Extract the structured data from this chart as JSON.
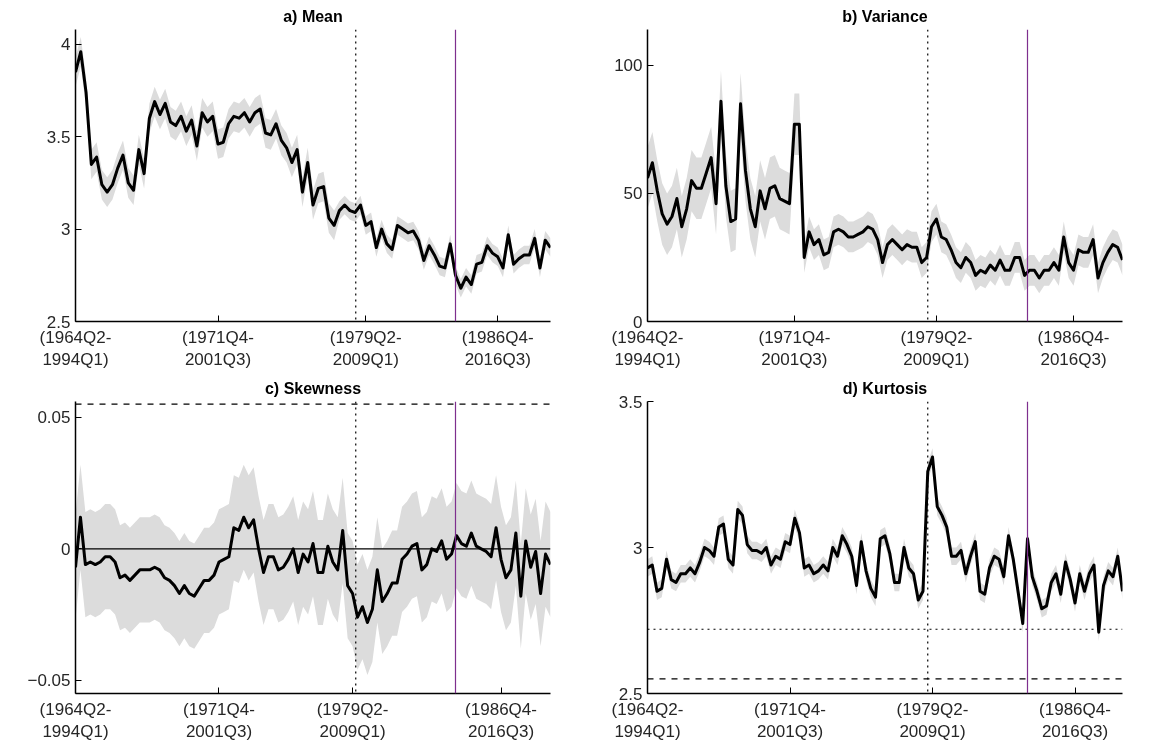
{
  "chart_data": [
    {
      "type": "line",
      "title": "a) Mean",
      "ylim": [
        2.5,
        4.08
      ],
      "categories": [
        "(1964Q2-\n1994Q1)",
        null,
        null,
        null,
        null,
        null,
        null,
        null,
        null,
        null,
        null,
        null,
        null,
        null,
        null,
        null,
        null,
        null,
        null,
        null,
        null,
        null,
        null,
        null,
        null,
        null,
        null,
        "(1971Q4-\n2001Q3)",
        null,
        null,
        null,
        null,
        null,
        null,
        null,
        null,
        null,
        null,
        null,
        null,
        null,
        null,
        null,
        null,
        null,
        null,
        null,
        null,
        null,
        null,
        null,
        null,
        null,
        null,
        null,
        "(1979Q2-\n2009Q1)",
        null,
        null,
        null,
        null,
        null,
        null,
        null,
        null,
        null,
        null,
        null,
        null,
        null,
        null,
        null,
        null,
        null,
        null,
        null,
        null,
        null,
        null,
        null,
        null,
        "(1986Q4-\n2016Q3)",
        null,
        null,
        null,
        null,
        null,
        null,
        null,
        null,
        null,
        null
      ],
      "yticks": [
        2.5,
        3,
        3.5,
        4
      ],
      "series": [
        {
          "color": "#000000",
          "values": [
            3.85,
            3.96,
            3.74,
            3.35,
            3.39,
            3.24,
            3.2,
            3.24,
            3.33,
            3.4,
            3.25,
            3.21,
            3.43,
            3.3,
            3.6,
            3.69,
            3.62,
            3.68,
            3.58,
            3.56,
            3.61,
            3.53,
            3.59,
            3.45,
            3.63,
            3.58,
            3.61,
            3.46,
            3.47,
            3.57,
            3.61,
            3.6,
            3.63,
            3.58,
            3.63,
            3.65,
            3.52,
            3.51,
            3.57,
            3.48,
            3.44,
            3.36,
            3.43,
            3.2,
            3.36,
            3.13,
            3.22,
            3.23,
            3.06,
            3.02,
            3.1,
            3.13,
            3.1,
            3.09,
            3.13,
            3.02,
            3.04,
            2.9,
            3.0,
            2.92,
            2.89,
            3.02,
            3.0,
            2.98,
            2.99,
            2.94,
            2.83,
            2.91,
            2.86,
            2.8,
            2.79,
            2.92,
            2.75,
            2.68,
            2.74,
            2.7,
            2.81,
            2.82,
            2.91,
            2.87,
            2.85,
            2.79,
            2.97,
            2.81,
            2.84,
            2.86,
            2.86,
            2.95,
            2.79,
            2.94,
            2.9
          ],
          "lower": [
            3.77,
            3.88,
            3.66,
            3.27,
            3.31,
            3.16,
            3.12,
            3.16,
            3.25,
            3.32,
            3.17,
            3.13,
            3.35,
            3.22,
            3.52,
            3.61,
            3.54,
            3.6,
            3.5,
            3.48,
            3.53,
            3.45,
            3.51,
            3.37,
            3.55,
            3.5,
            3.53,
            3.38,
            3.39,
            3.49,
            3.53,
            3.52,
            3.55,
            3.5,
            3.55,
            3.57,
            3.44,
            3.43,
            3.49,
            3.4,
            3.36,
            3.28,
            3.35,
            3.12,
            3.28,
            3.05,
            3.14,
            3.15,
            2.98,
            2.94,
            3.05,
            3.08,
            3.05,
            3.04,
            3.08,
            2.97,
            2.99,
            2.85,
            2.95,
            2.87,
            2.84,
            2.97,
            2.95,
            2.93,
            2.94,
            2.89,
            2.78,
            2.86,
            2.81,
            2.75,
            2.74,
            2.87,
            2.7,
            2.63,
            2.69,
            2.65,
            2.76,
            2.77,
            2.86,
            2.82,
            2.8,
            2.74,
            2.92,
            2.76,
            2.79,
            2.81,
            2.81,
            2.9,
            2.74,
            2.89,
            2.85
          ],
          "upper": [
            3.93,
            4.04,
            3.82,
            3.43,
            3.47,
            3.32,
            3.28,
            3.32,
            3.41,
            3.48,
            3.33,
            3.29,
            3.51,
            3.38,
            3.68,
            3.77,
            3.7,
            3.76,
            3.66,
            3.64,
            3.69,
            3.61,
            3.67,
            3.53,
            3.71,
            3.66,
            3.69,
            3.54,
            3.55,
            3.65,
            3.69,
            3.68,
            3.71,
            3.66,
            3.71,
            3.73,
            3.6,
            3.59,
            3.65,
            3.56,
            3.52,
            3.44,
            3.51,
            3.28,
            3.44,
            3.21,
            3.3,
            3.31,
            3.14,
            3.1,
            3.15,
            3.18,
            3.15,
            3.14,
            3.18,
            3.07,
            3.09,
            2.95,
            3.05,
            2.97,
            2.94,
            3.07,
            3.05,
            3.03,
            3.04,
            2.99,
            2.88,
            2.96,
            2.91,
            2.85,
            2.84,
            2.97,
            2.8,
            2.73,
            2.79,
            2.75,
            2.86,
            2.87,
            2.96,
            2.92,
            2.9,
            2.84,
            3.02,
            2.86,
            2.89,
            2.91,
            2.91,
            3.0,
            2.84,
            2.99,
            2.95
          ]
        }
      ]
    },
    {
      "type": "line",
      "title": "b) Variance",
      "ylim": [
        0,
        114
      ],
      "categories": [
        "(1964Q2-\n1994Q1)",
        null,
        null,
        null,
        null,
        null,
        null,
        null,
        null,
        null,
        null,
        null,
        null,
        null,
        null,
        null,
        null,
        null,
        null,
        null,
        null,
        null,
        null,
        null,
        null,
        null,
        null,
        null,
        null,
        null,
        "(1971Q4-\n2001Q3)",
        null,
        null,
        null,
        null,
        null,
        null,
        null,
        null,
        null,
        null,
        null,
        null,
        null,
        null,
        null,
        null,
        null,
        null,
        null,
        null,
        null,
        null,
        null,
        null,
        null,
        null,
        null,
        null,
        "(1979Q2-\n2009Q1)",
        null,
        null,
        null,
        null,
        null,
        null,
        null,
        null,
        null,
        null,
        null,
        null,
        null,
        null,
        null,
        null,
        null,
        null,
        null,
        null,
        null,
        null,
        null,
        null,
        null,
        null,
        null,
        "(1986Q4-\n2016Q3)",
        null,
        null,
        null,
        null,
        null,
        null,
        null,
        null,
        null,
        null
      ],
      "yticks": [
        0,
        50,
        100
      ],
      "series": [
        {
          "color": "#000000",
          "values": [
            56,
            62,
            51,
            42,
            38,
            41,
            48,
            37,
            44,
            55,
            52,
            52,
            58,
            64,
            46,
            86,
            53,
            39,
            40,
            85,
            59,
            44,
            37,
            51,
            44,
            52,
            53,
            48,
            47,
            46,
            77,
            77,
            25,
            35,
            30,
            32,
            26,
            27,
            35,
            36,
            35,
            33,
            33,
            34,
            35,
            37,
            36,
            32,
            23,
            30,
            32,
            30,
            28,
            30,
            29,
            29,
            23,
            25,
            37,
            40,
            33,
            32,
            28,
            23,
            21,
            25,
            23,
            18,
            20,
            19,
            22,
            20,
            24,
            20,
            20,
            25,
            25,
            18,
            20,
            20,
            17,
            20,
            20,
            23,
            20,
            33,
            23,
            20,
            28,
            27,
            27,
            32,
            17,
            23,
            27,
            30,
            29,
            24
          ],
          "lower": [
            44,
            50,
            39,
            30,
            26,
            29,
            36,
            25,
            32,
            43,
            40,
            40,
            46,
            52,
            34,
            74,
            41,
            27,
            28,
            73,
            47,
            32,
            25,
            39,
            32,
            40,
            41,
            36,
            35,
            34,
            65,
            65,
            19,
            29,
            24,
            26,
            20,
            21,
            29,
            30,
            29,
            27,
            27,
            28,
            29,
            31,
            30,
            26,
            17,
            24,
            26,
            24,
            22,
            24,
            23,
            23,
            17,
            19,
            31,
            34,
            27,
            26,
            22,
            17,
            15,
            19,
            17,
            12,
            14,
            13,
            16,
            14,
            18,
            14,
            14,
            19,
            19,
            12,
            14,
            14,
            11,
            14,
            14,
            17,
            14,
            27,
            17,
            14,
            22,
            21,
            21,
            26,
            11,
            17,
            21,
            24,
            23,
            18
          ],
          "upper": [
            68,
            74,
            63,
            54,
            50,
            53,
            60,
            49,
            56,
            67,
            64,
            64,
            70,
            76,
            58,
            98,
            65,
            51,
            52,
            97,
            71,
            56,
            49,
            63,
            56,
            64,
            65,
            60,
            59,
            58,
            89,
            89,
            31,
            41,
            36,
            38,
            32,
            33,
            41,
            42,
            41,
            39,
            39,
            40,
            41,
            43,
            42,
            38,
            29,
            36,
            38,
            36,
            34,
            36,
            35,
            35,
            29,
            31,
            43,
            46,
            39,
            38,
            34,
            29,
            27,
            31,
            29,
            24,
            26,
            25,
            28,
            26,
            30,
            26,
            26,
            31,
            31,
            24,
            26,
            26,
            23,
            26,
            26,
            29,
            26,
            39,
            29,
            26,
            34,
            33,
            33,
            38,
            23,
            29,
            33,
            36,
            35,
            30
          ]
        }
      ]
    },
    {
      "type": "line",
      "title": "c) Skewness",
      "ylim": [
        -0.055,
        0.056
      ],
      "categories": [
        "(1964Q2-\n1994Q1)",
        null,
        null,
        null,
        null,
        null,
        null,
        null,
        null,
        null,
        null,
        null,
        null,
        null,
        null,
        null,
        null,
        null,
        null,
        null,
        null,
        null,
        null,
        null,
        null,
        null,
        null,
        null,
        null,
        "(1971Q4-\n2001Q3)",
        null,
        null,
        null,
        null,
        null,
        null,
        null,
        null,
        null,
        null,
        null,
        null,
        null,
        null,
        null,
        null,
        null,
        null,
        null,
        null,
        null,
        null,
        null,
        null,
        null,
        null,
        "(1979Q2-\n2009Q1)",
        null,
        null,
        null,
        null,
        null,
        null,
        null,
        null,
        null,
        null,
        null,
        null,
        null,
        null,
        null,
        null,
        null,
        null,
        null,
        null,
        null,
        null,
        null,
        null,
        null,
        null,
        null,
        null,
        null,
        "(1986Q4-\n2016Q3)",
        null,
        null,
        null,
        null,
        null,
        null,
        null,
        null,
        null,
        null
      ],
      "yticks": [
        -0.05,
        0,
        0.05
      ],
      "ref_lines": [
        {
          "axis": "y",
          "value": 0,
          "color": "#000000",
          "line_style": "solid"
        },
        {
          "axis": "y",
          "value": 0.055,
          "color": "#000000",
          "line_style": "dashed"
        }
      ],
      "series": [
        {
          "color": "#000000",
          "values": [
            -0.007,
            0.012,
            -0.006,
            -0.005,
            -0.006,
            -0.005,
            -0.003,
            -0.003,
            -0.005,
            -0.011,
            -0.01,
            -0.012,
            -0.01,
            -0.008,
            -0.008,
            -0.008,
            -0.007,
            -0.008,
            -0.011,
            -0.012,
            -0.014,
            -0.017,
            -0.014,
            -0.017,
            -0.018,
            -0.015,
            -0.012,
            -0.012,
            -0.01,
            -0.005,
            -0.004,
            -0.003,
            0.008,
            0.007,
            0.012,
            0.008,
            0.011,
            0.0,
            -0.009,
            -0.003,
            -0.003,
            -0.008,
            -0.007,
            -0.004,
            0.0,
            -0.009,
            -0.002,
            -0.005,
            0.002,
            -0.009,
            -0.009,
            0.001,
            -0.005,
            -0.008,
            0.007,
            -0.014,
            -0.017,
            -0.026,
            -0.022,
            -0.028,
            -0.023,
            -0.008,
            -0.02,
            -0.017,
            -0.013,
            -0.013,
            -0.004,
            -0.002,
            0.001,
            0.002,
            -0.008,
            -0.006,
            0.0,
            -0.001,
            0.003,
            -0.004,
            -0.002,
            0.005,
            0.002,
            0.001,
            0.006,
            0.001,
            0.0,
            -0.001,
            -0.003,
            0.008,
            -0.004,
            -0.011,
            -0.008,
            0.006,
            -0.018,
            0.003,
            -0.007,
            -0.001,
            -0.017,
            -0.002,
            -0.006
          ],
          "lower": [
            -0.027,
            -0.008,
            -0.026,
            -0.025,
            -0.026,
            -0.025,
            -0.023,
            -0.023,
            -0.025,
            -0.031,
            -0.03,
            -0.032,
            -0.03,
            -0.028,
            -0.028,
            -0.028,
            -0.027,
            -0.028,
            -0.031,
            -0.032,
            -0.034,
            -0.037,
            -0.034,
            -0.037,
            -0.038,
            -0.035,
            -0.032,
            -0.032,
            -0.03,
            -0.025,
            -0.024,
            -0.023,
            -0.012,
            -0.013,
            -0.008,
            -0.012,
            -0.009,
            -0.02,
            -0.029,
            -0.023,
            -0.023,
            -0.028,
            -0.027,
            -0.024,
            -0.02,
            -0.029,
            -0.022,
            -0.025,
            -0.018,
            -0.029,
            -0.029,
            -0.019,
            -0.025,
            -0.028,
            -0.013,
            -0.034,
            -0.037,
            -0.046,
            -0.042,
            -0.048,
            -0.043,
            -0.028,
            -0.04,
            -0.037,
            -0.033,
            -0.033,
            -0.024,
            -0.022,
            -0.019,
            -0.018,
            -0.028,
            -0.026,
            -0.02,
            -0.021,
            -0.017,
            -0.024,
            -0.022,
            -0.015,
            -0.018,
            -0.019,
            -0.014,
            -0.019,
            -0.02,
            -0.021,
            -0.023,
            -0.012,
            -0.024,
            -0.031,
            -0.028,
            -0.014,
            -0.038,
            -0.017,
            -0.027,
            -0.021,
            -0.037,
            -0.022,
            -0.026
          ],
          "upper": [
            0.013,
            0.032,
            0.014,
            0.015,
            0.014,
            0.015,
            0.017,
            0.017,
            0.015,
            0.009,
            0.01,
            0.008,
            0.01,
            0.012,
            0.012,
            0.012,
            0.013,
            0.012,
            0.009,
            0.008,
            0.006,
            0.003,
            0.006,
            0.003,
            0.002,
            0.005,
            0.008,
            0.008,
            0.01,
            0.015,
            0.016,
            0.017,
            0.028,
            0.027,
            0.032,
            0.028,
            0.031,
            0.02,
            0.011,
            0.017,
            0.017,
            0.012,
            0.013,
            0.016,
            0.02,
            0.011,
            0.018,
            0.015,
            0.022,
            0.011,
            0.011,
            0.021,
            0.015,
            0.012,
            0.027,
            0.006,
            0.003,
            -0.006,
            -0.002,
            -0.008,
            -0.003,
            0.012,
            0.0,
            0.003,
            0.007,
            0.007,
            0.016,
            0.018,
            0.021,
            0.022,
            0.012,
            0.014,
            0.02,
            0.019,
            0.023,
            0.016,
            0.018,
            0.025,
            0.022,
            0.021,
            0.026,
            0.021,
            0.02,
            0.019,
            0.017,
            0.028,
            0.016,
            0.009,
            0.012,
            0.026,
            0.002,
            0.023,
            0.013,
            0.019,
            0.003,
            0.018,
            0.014
          ]
        }
      ]
    },
    {
      "type": "line",
      "title": "d) Kurtosis",
      "ylim": [
        2.5,
        3.5
      ],
      "categories": [
        "(1964Q2-\n1994Q1)",
        null,
        null,
        null,
        null,
        null,
        null,
        null,
        null,
        null,
        null,
        null,
        null,
        null,
        null,
        null,
        null,
        null,
        null,
        null,
        null,
        null,
        null,
        null,
        null,
        null,
        null,
        null,
        null,
        null,
        "(1971Q4-\n2001Q3)",
        null,
        null,
        null,
        null,
        null,
        null,
        null,
        null,
        null,
        null,
        null,
        null,
        null,
        null,
        null,
        null,
        null,
        null,
        null,
        null,
        null,
        null,
        null,
        null,
        null,
        null,
        null,
        null,
        null,
        "(1979Q2-\n2009Q1)",
        null,
        null,
        null,
        null,
        null,
        null,
        null,
        null,
        null,
        null,
        null,
        null,
        null,
        null,
        null,
        null,
        null,
        null,
        null,
        null,
        null,
        null,
        null,
        null,
        null,
        null,
        null,
        null,
        null,
        "(1986Q4-\n2016Q3)",
        null,
        null,
        null,
        null,
        null,
        null,
        null,
        null,
        null,
        null
      ],
      "yticks": [
        2.5,
        3,
        3.5
      ],
      "ref_lines": [
        {
          "axis": "y",
          "value": 2.72,
          "color": "#000000",
          "line_style": "dotted"
        },
        {
          "axis": "y",
          "value": 2.55,
          "color": "#000000",
          "line_style": "dashed"
        }
      ],
      "series": [
        {
          "color": "#000000",
          "values": [
            2.93,
            2.94,
            2.85,
            2.86,
            2.96,
            2.89,
            2.88,
            2.91,
            2.91,
            2.93,
            2.91,
            2.95,
            3.0,
            2.99,
            2.97,
            3.07,
            3.08,
            2.96,
            2.94,
            3.13,
            3.11,
            3.01,
            2.99,
            2.99,
            2.98,
            3.0,
            2.94,
            2.97,
            2.96,
            3.02,
            3.01,
            3.1,
            3.05,
            2.93,
            2.94,
            2.91,
            2.92,
            2.94,
            2.92,
            3.0,
            2.97,
            3.04,
            3.01,
            2.97,
            2.87,
            3.02,
            2.92,
            2.86,
            2.83,
            3.03,
            3.04,
            2.98,
            2.88,
            2.88,
            3.0,
            2.93,
            2.91,
            2.82,
            2.85,
            3.26,
            3.31,
            3.14,
            3.11,
            3.07,
            2.97,
            2.97,
            2.99,
            2.91,
            2.97,
            3.02,
            2.85,
            2.84,
            2.93,
            2.97,
            2.96,
            2.9,
            3.04,
            2.96,
            2.85,
            2.74,
            3.03,
            2.9,
            2.85,
            2.79,
            2.8,
            2.88,
            2.91,
            2.84,
            2.95,
            2.89,
            2.81,
            2.91,
            2.85,
            2.91,
            2.94,
            2.71,
            2.87,
            2.92,
            2.9,
            2.97,
            2.85
          ],
          "lower": [
            2.9,
            2.91,
            2.82,
            2.83,
            2.93,
            2.86,
            2.85,
            2.88,
            2.88,
            2.9,
            2.88,
            2.92,
            2.97,
            2.96,
            2.94,
            3.04,
            3.05,
            2.93,
            2.91,
            3.1,
            3.08,
            2.98,
            2.96,
            2.96,
            2.95,
            2.97,
            2.91,
            2.94,
            2.93,
            2.99,
            2.98,
            3.07,
            3.02,
            2.9,
            2.91,
            2.88,
            2.89,
            2.91,
            2.89,
            2.97,
            2.94,
            3.01,
            2.98,
            2.94,
            2.84,
            2.99,
            2.89,
            2.83,
            2.8,
            3.0,
            3.01,
            2.95,
            2.85,
            2.85,
            2.97,
            2.9,
            2.88,
            2.79,
            2.82,
            3.23,
            3.28,
            3.11,
            3.08,
            3.04,
            2.94,
            2.94,
            2.96,
            2.88,
            2.94,
            2.99,
            2.82,
            2.81,
            2.9,
            2.94,
            2.93,
            2.87,
            3.01,
            2.93,
            2.82,
            2.71,
            3.0,
            2.87,
            2.82,
            2.76,
            2.77,
            2.85,
            2.88,
            2.81,
            2.92,
            2.86,
            2.78,
            2.88,
            2.82,
            2.88,
            2.91,
            2.68,
            2.84,
            2.89,
            2.87,
            2.94,
            2.82
          ],
          "upper": [
            2.96,
            2.97,
            2.88,
            2.89,
            2.99,
            2.92,
            2.91,
            2.94,
            2.94,
            2.96,
            2.94,
            2.98,
            3.03,
            3.02,
            3.0,
            3.1,
            3.11,
            2.99,
            2.97,
            3.16,
            3.14,
            3.04,
            3.02,
            3.02,
            3.01,
            3.03,
            2.97,
            3.0,
            2.99,
            3.05,
            3.04,
            3.13,
            3.08,
            2.96,
            2.97,
            2.94,
            2.95,
            2.97,
            2.95,
            3.03,
            3.0,
            3.07,
            3.04,
            3.0,
            2.9,
            3.05,
            2.95,
            2.89,
            2.86,
            3.06,
            3.07,
            3.01,
            2.91,
            2.91,
            3.03,
            2.96,
            2.94,
            2.85,
            2.88,
            3.29,
            3.34,
            3.17,
            3.14,
            3.1,
            3.0,
            3.0,
            3.02,
            2.94,
            3.0,
            3.05,
            2.88,
            2.87,
            2.96,
            3.0,
            2.99,
            2.93,
            3.07,
            2.99,
            2.88,
            2.77,
            3.06,
            2.93,
            2.88,
            2.82,
            2.83,
            2.91,
            2.94,
            2.87,
            2.98,
            2.92,
            2.84,
            2.94,
            2.88,
            2.94,
            2.97,
            2.74,
            2.9,
            2.95,
            2.93,
            3.0,
            2.88
          ]
        }
      ]
    }
  ]
}
